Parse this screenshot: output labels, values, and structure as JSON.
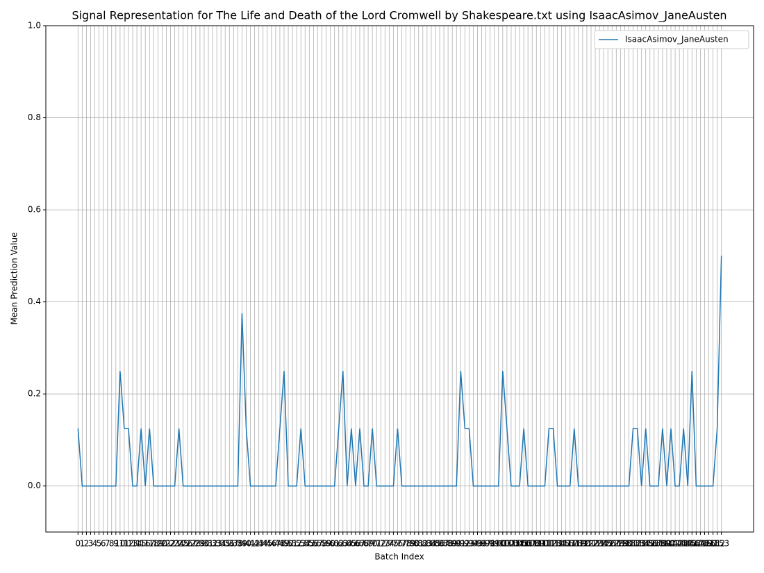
{
  "chart_data": {
    "type": "line",
    "title": "Signal Representation for The Life and Death of the Lord Cromwell by Shakespeare.txt using IsaacAsimov_JaneAusten",
    "xlabel": "Batch Index",
    "ylabel": "Mean Prediction Value",
    "x": [
      0,
      1,
      2,
      3,
      4,
      5,
      6,
      7,
      8,
      9,
      10,
      11,
      12,
      13,
      14,
      15,
      16,
      17,
      18,
      19,
      20,
      21,
      22,
      23,
      24,
      25,
      26,
      27,
      28,
      29,
      30,
      31,
      32,
      33,
      34,
      35,
      36,
      37,
      38,
      39,
      40,
      41,
      42,
      43,
      44,
      45,
      46,
      47,
      48,
      49,
      50,
      51,
      52,
      53,
      54,
      55,
      56,
      57,
      58,
      59,
      60,
      61,
      62,
      63,
      64,
      65,
      66,
      67,
      68,
      69,
      70,
      71,
      72,
      73,
      74,
      75,
      76,
      77,
      78,
      79,
      80,
      81,
      82,
      83,
      84,
      85,
      86,
      87,
      88,
      89,
      90,
      91,
      92,
      93,
      94,
      95,
      96,
      97,
      98,
      99,
      100,
      101,
      102,
      103,
      104,
      105,
      106,
      107,
      108,
      109,
      110,
      111,
      112,
      113,
      114,
      115,
      116,
      117,
      118,
      119,
      120,
      121,
      122,
      123,
      124,
      125,
      126,
      127,
      128,
      129,
      130,
      131,
      132,
      133,
      134,
      135,
      136,
      137,
      138,
      139,
      140,
      141,
      142,
      143,
      144,
      145,
      146,
      147,
      148,
      149,
      150,
      151,
      152,
      153
    ],
    "series": [
      {
        "name": "IsaacAsimov_JaneAusten",
        "color": "#1f77b4",
        "values": [
          0.125,
          0,
          0,
          0,
          0,
          0,
          0,
          0,
          0,
          0,
          0.25,
          0.125,
          0.125,
          0,
          0,
          0.125,
          0,
          0.125,
          0,
          0,
          0,
          0,
          0,
          0,
          0.125,
          0,
          0,
          0,
          0,
          0,
          0,
          0,
          0,
          0,
          0,
          0,
          0,
          0,
          0,
          0.375,
          0.125,
          0,
          0,
          0,
          0,
          0,
          0,
          0,
          0.125,
          0.25,
          0,
          0,
          0,
          0.125,
          0,
          0,
          0,
          0,
          0,
          0,
          0,
          0,
          0.125,
          0.25,
          0,
          0.125,
          0,
          0.125,
          0,
          0,
          0.125,
          0,
          0,
          0,
          0,
          0,
          0.125,
          0,
          0,
          0,
          0,
          0,
          0,
          0,
          0,
          0,
          0,
          0,
          0,
          0,
          0,
          0.25,
          0.125,
          0.125,
          0,
          0,
          0,
          0,
          0,
          0,
          0,
          0.25,
          0.125,
          0,
          0,
          0,
          0.125,
          0,
          0,
          0,
          0,
          0,
          0.125,
          0.125,
          0,
          0,
          0,
          0,
          0.125,
          0,
          0,
          0,
          0,
          0,
          0,
          0,
          0,
          0,
          0,
          0,
          0,
          0,
          0.125,
          0.125,
          0,
          0.125,
          0,
          0,
          0,
          0.125,
          0,
          0.125,
          0,
          0,
          0.125,
          0,
          0.25,
          0,
          0,
          0,
          0,
          0,
          0.125,
          0.5
        ]
      }
    ],
    "xlim": [
      -7.65,
      160.65
    ],
    "ylim": [
      -0.1,
      1.0
    ],
    "xticks": [
      0,
      1,
      2,
      3,
      4,
      5,
      6,
      7,
      8,
      9,
      10,
      11,
      12,
      13,
      14,
      15,
      16,
      17,
      18,
      19,
      20,
      21,
      22,
      23,
      24,
      25,
      26,
      27,
      28,
      29,
      30,
      31,
      32,
      33,
      34,
      35,
      36,
      37,
      38,
      39,
      40,
      41,
      42,
      43,
      44,
      45,
      46,
      47,
      48,
      49,
      50,
      51,
      52,
      53,
      54,
      55,
      56,
      57,
      58,
      59,
      60,
      61,
      62,
      63,
      64,
      65,
      66,
      67,
      68,
      69,
      70,
      71,
      72,
      73,
      74,
      75,
      76,
      77,
      78,
      79,
      80,
      81,
      82,
      83,
      84,
      85,
      86,
      87,
      88,
      89,
      90,
      91,
      92,
      93,
      94,
      95,
      96,
      97,
      98,
      99,
      100,
      101,
      102,
      103,
      104,
      105,
      106,
      107,
      108,
      109,
      110,
      111,
      112,
      113,
      114,
      115,
      116,
      117,
      118,
      119,
      120,
      121,
      122,
      123,
      124,
      125,
      126,
      127,
      128,
      129,
      130,
      131,
      132,
      133,
      134,
      135,
      136,
      137,
      138,
      139,
      140,
      141,
      142,
      143,
      144,
      145,
      146,
      147,
      148,
      149,
      150,
      151,
      152,
      153
    ],
    "yticks": [
      {
        "value": 0,
        "label": "0.0"
      },
      {
        "value": 0.2,
        "label": "0.2"
      },
      {
        "value": 0.4,
        "label": "0.4"
      },
      {
        "value": 0.6,
        "label": "0.6"
      },
      {
        "value": 0.8,
        "label": "0.8"
      },
      {
        "value": 1.0,
        "label": "1.0"
      }
    ],
    "grid": true,
    "legend": "upper right"
  }
}
